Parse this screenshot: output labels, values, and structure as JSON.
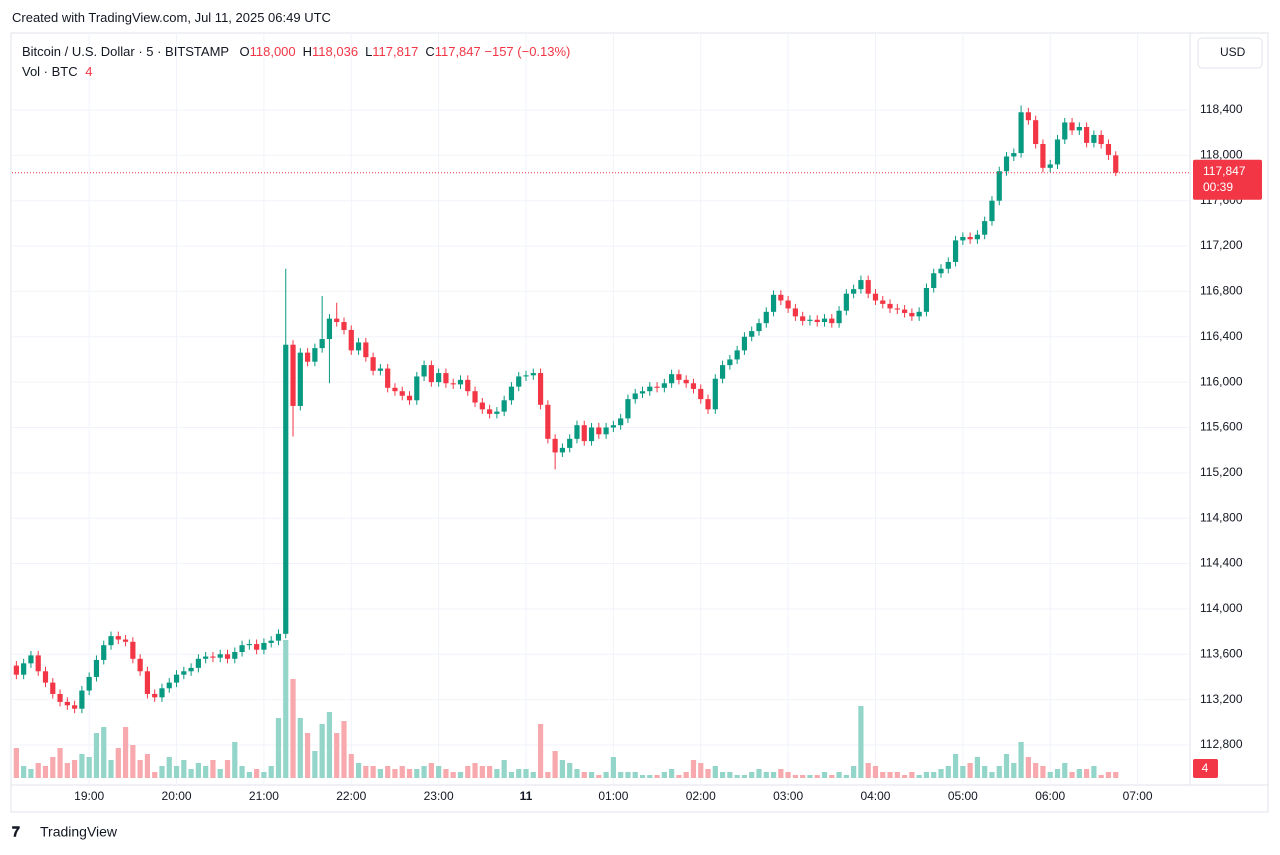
{
  "header": {
    "created": "Created with TradingView.com, Jul 11, 2025 06:49 UTC"
  },
  "footer": {
    "logo": "TradingView"
  },
  "chart_data": {
    "type": "candlestick",
    "title": "Bitcoin / U.S. Dollar · 5 · BITSTAMP",
    "ohlc_header": [
      {
        "key": "O",
        "value": "118,000"
      },
      {
        "key": "H",
        "value": "118,036"
      },
      {
        "key": "L",
        "value": "117,817"
      },
      {
        "key": "C",
        "value": "117,847"
      }
    ],
    "change_label": "−157 (−0.13%)",
    "volume_title": "Vol · BTC",
    "currency": "USD",
    "last_label": "117,847",
    "countdown": "00:39",
    "up_color": "#089981",
    "down_color": "#f23645",
    "up_volume_color": "#93d5c9",
    "down_volume_color": "#f7a9ae",
    "grid": true,
    "xlim": [
      1087,
      1896
    ],
    "xticks": [
      {
        "value": 1140,
        "label": "19:00"
      },
      {
        "value": 1200,
        "label": "20:00"
      },
      {
        "value": 1260,
        "label": "21:00"
      },
      {
        "value": 1320,
        "label": "22:00"
      },
      {
        "value": 1380,
        "label": "23:00"
      },
      {
        "value": 1440,
        "label": "11"
      },
      {
        "value": 1500,
        "label": "01:00"
      },
      {
        "value": 1560,
        "label": "02:00"
      },
      {
        "value": 1620,
        "label": "03:00"
      },
      {
        "value": 1680,
        "label": "04:00"
      },
      {
        "value": 1740,
        "label": "05:00"
      },
      {
        "value": 1800,
        "label": "06:00"
      },
      {
        "value": 1860,
        "label": "07:00"
      }
    ],
    "ylim": [
      112447,
      119079
    ],
    "yticks": [
      {
        "value": 112800,
        "label": "112,800"
      },
      {
        "value": 113200,
        "label": "113,200"
      },
      {
        "value": 113600,
        "label": "113,600"
      },
      {
        "value": 114000,
        "label": "114,000"
      },
      {
        "value": 114400,
        "label": "114,400"
      },
      {
        "value": 114800,
        "label": "114,800"
      },
      {
        "value": 115200,
        "label": "115,200"
      },
      {
        "value": 115600,
        "label": "115,600"
      },
      {
        "value": 116000,
        "label": "116,000"
      },
      {
        "value": 116400,
        "label": "116,400"
      },
      {
        "value": 116800,
        "label": "116,800"
      },
      {
        "value": 117200,
        "label": "117,200"
      },
      {
        "value": 117600,
        "label": "117,600"
      },
      {
        "value": 118000,
        "label": "118,000"
      },
      {
        "value": 118400,
        "label": "118,400"
      }
    ],
    "vlim": [
      0,
      100
    ],
    "x": [
      1090,
      1095,
      1100,
      1105,
      1110,
      1115,
      1120,
      1125,
      1130,
      1135,
      1140,
      1145,
      1150,
      1155,
      1160,
      1165,
      1170,
      1175,
      1180,
      1185,
      1190,
      1195,
      1200,
      1205,
      1210,
      1215,
      1220,
      1225,
      1230,
      1235,
      1240,
      1245,
      1250,
      1255,
      1260,
      1265,
      1270,
      1275,
      1280,
      1285,
      1290,
      1295,
      1300,
      1305,
      1310,
      1315,
      1320,
      1325,
      1330,
      1335,
      1340,
      1345,
      1350,
      1355,
      1360,
      1365,
      1370,
      1375,
      1380,
      1385,
      1390,
      1395,
      1400,
      1405,
      1410,
      1415,
      1420,
      1425,
      1430,
      1435,
      1440,
      1445,
      1450,
      1455,
      1460,
      1465,
      1470,
      1475,
      1480,
      1485,
      1490,
      1495,
      1500,
      1505,
      1510,
      1515,
      1520,
      1525,
      1530,
      1535,
      1540,
      1545,
      1550,
      1555,
      1560,
      1565,
      1570,
      1575,
      1580,
      1585,
      1590,
      1595,
      1600,
      1605,
      1610,
      1615,
      1620,
      1625,
      1630,
      1635,
      1640,
      1645,
      1650,
      1655,
      1660,
      1665,
      1670,
      1675,
      1680,
      1685,
      1690,
      1695,
      1700,
      1705,
      1710,
      1715,
      1720,
      1725,
      1730,
      1735,
      1740,
      1745,
      1750,
      1755,
      1760,
      1765,
      1770,
      1775,
      1780,
      1785,
      1790,
      1795,
      1800,
      1805,
      1810,
      1815,
      1820,
      1825,
      1830,
      1835,
      1840,
      1845
    ],
    "open": [
      113500,
      113420,
      113520,
      113590,
      113450,
      113350,
      113250,
      113180,
      113150,
      113120,
      113280,
      113400,
      113550,
      113680,
      113760,
      113730,
      113710,
      113560,
      113450,
      113250,
      113220,
      113300,
      113350,
      113420,
      113450,
      113480,
      113560,
      113580,
      113570,
      113600,
      113560,
      113620,
      113680,
      113690,
      113640,
      113700,
      113720,
      113780,
      116330,
      115790,
      116260,
      116180,
      116300,
      116380,
      116560,
      116530,
      116460,
      116280,
      116350,
      116220,
      116100,
      116120,
      115950,
      115920,
      115880,
      115840,
      116050,
      116150,
      116000,
      116080,
      115990,
      115980,
      116020,
      115920,
      115820,
      115760,
      115720,
      115740,
      115840,
      115960,
      116050,
      116060,
      116080,
      115800,
      115500,
      115380,
      115420,
      115500,
      115620,
      115480,
      115600,
      115540,
      115600,
      115620,
      115680,
      115850,
      115900,
      115920,
      115960,
      115950,
      115990,
      116070,
      116020,
      115990,
      115940,
      115850,
      115760,
      116030,
      116150,
      116200,
      116280,
      116400,
      116450,
      116520,
      116620,
      116770,
      116720,
      116650,
      116580,
      116540,
      116550,
      116530,
      116560,
      116520,
      116630,
      116780,
      116820,
      116900,
      116780,
      116720,
      116690,
      116650,
      116640,
      116610,
      116580,
      116620,
      116830,
      116960,
      117000,
      117060,
      117250,
      117280,
      117260,
      117300,
      117420,
      117600,
      117860,
      117990,
      118020,
      118380,
      118310,
      118100,
      117890,
      117920,
      118140,
      118290,
      118220,
      118250,
      118110,
      118180,
      118100,
      118000
    ],
    "high": [
      113540,
      113560,
      113630,
      113630,
      113490,
      113390,
      113290,
      113220,
      113190,
      113320,
      113440,
      113590,
      113720,
      113800,
      113800,
      113770,
      113750,
      113600,
      113490,
      113290,
      113340,
      113390,
      113460,
      113490,
      113520,
      113600,
      113620,
      113620,
      113640,
      113640,
      113660,
      113720,
      113730,
      113730,
      113740,
      113760,
      113820,
      117000,
      116370,
      116300,
      116300,
      116340,
      116760,
      116600,
      116700,
      116570,
      116500,
      116390,
      116390,
      116260,
      116160,
      116160,
      115990,
      115960,
      115920,
      116090,
      116190,
      116190,
      116120,
      116120,
      116030,
      116060,
      116060,
      115960,
      115860,
      115800,
      115780,
      115880,
      116000,
      116090,
      116100,
      116120,
      116120,
      115840,
      115540,
      115460,
      115540,
      115660,
      115660,
      115640,
      115640,
      115640,
      115660,
      115720,
      115890,
      115940,
      115960,
      116000,
      116000,
      116030,
      116110,
      116110,
      116060,
      116030,
      115980,
      115890,
      116070,
      116190,
      116240,
      116320,
      116440,
      116490,
      116560,
      116660,
      116810,
      116810,
      116760,
      116690,
      116620,
      116590,
      116590,
      116600,
      116600,
      116670,
      116820,
      116860,
      116940,
      116940,
      116820,
      116760,
      116730,
      116690,
      116680,
      116650,
      116660,
      116870,
      117000,
      117040,
      117100,
      117290,
      117320,
      117320,
      117340,
      117460,
      117640,
      117900,
      118030,
      118060,
      118440,
      118420,
      118350,
      118140,
      117960,
      118180,
      118330,
      118330,
      118290,
      118290,
      118220,
      118220,
      118140,
      118036
    ],
    "low": [
      113380,
      113380,
      113480,
      113410,
      113310,
      113210,
      113140,
      113110,
      113080,
      113080,
      113240,
      113360,
      113510,
      113640,
      113690,
      113670,
      113520,
      113410,
      113210,
      113180,
      113180,
      113260,
      113310,
      113380,
      113410,
      113440,
      113520,
      113530,
      113530,
      113520,
      113520,
      113580,
      113640,
      113600,
      113600,
      113660,
      113680,
      113740,
      115520,
      115750,
      116140,
      116140,
      116260,
      115990,
      116490,
      116420,
      116240,
      116240,
      116180,
      116060,
      116060,
      115910,
      115880,
      115840,
      115800,
      115800,
      116010,
      115960,
      115960,
      115950,
      115940,
      115940,
      115880,
      115780,
      115720,
      115680,
      115680,
      115700,
      115800,
      115920,
      116010,
      116020,
      115760,
      115460,
      115230,
      115340,
      115380,
      115460,
      115440,
      115440,
      115500,
      115500,
      115560,
      115580,
      115640,
      115810,
      115860,
      115880,
      115910,
      115910,
      115950,
      115980,
      115950,
      115900,
      115810,
      115720,
      115720,
      115990,
      116110,
      116160,
      116240,
      116360,
      116410,
      116480,
      116580,
      116680,
      116610,
      116540,
      116500,
      116500,
      116490,
      116490,
      116480,
      116480,
      116590,
      116740,
      116780,
      116740,
      116680,
      116650,
      116610,
      116600,
      116570,
      116540,
      116540,
      116580,
      116790,
      116920,
      116960,
      117020,
      117210,
      117220,
      117220,
      117260,
      117380,
      117560,
      117820,
      117950,
      117980,
      118270,
      118060,
      117850,
      117850,
      117880,
      118100,
      118180,
      118180,
      118070,
      118070,
      118060,
      117960,
      117817
    ],
    "close": [
      113420,
      113520,
      113590,
      113450,
      113350,
      113250,
      113180,
      113150,
      113120,
      113280,
      113400,
      113550,
      113680,
      113760,
      113730,
      113710,
      113560,
      113450,
      113250,
      113220,
      113300,
      113350,
      113420,
      113450,
      113480,
      113560,
      113580,
      113570,
      113600,
      113560,
      113620,
      113680,
      113690,
      113640,
      113700,
      113720,
      113780,
      116330,
      115790,
      116260,
      116180,
      116300,
      116380,
      116560,
      116530,
      116460,
      116280,
      116350,
      116220,
      116100,
      116120,
      115950,
      115920,
      115880,
      115840,
      116050,
      116150,
      116000,
      116080,
      115990,
      115980,
      116020,
      115920,
      115820,
      115760,
      115720,
      115740,
      115840,
      115960,
      116050,
      116060,
      116080,
      115800,
      115500,
      115380,
      115420,
      115500,
      115620,
      115480,
      115600,
      115540,
      115600,
      115620,
      115680,
      115850,
      115900,
      115920,
      115960,
      115950,
      115990,
      116070,
      116020,
      115990,
      115940,
      115850,
      115760,
      116030,
      116150,
      116200,
      116280,
      116400,
      116450,
      116520,
      116620,
      116770,
      116720,
      116650,
      116580,
      116540,
      116550,
      116530,
      116560,
      116520,
      116630,
      116780,
      116820,
      116900,
      116780,
      116720,
      116690,
      116650,
      116640,
      116610,
      116580,
      116620,
      116830,
      116960,
      117000,
      117060,
      117250,
      117280,
      117260,
      117300,
      117420,
      117600,
      117860,
      117990,
      118020,
      118380,
      118310,
      118100,
      117890,
      117920,
      118140,
      118290,
      118220,
      118250,
      118110,
      118180,
      118100,
      118004,
      117847
    ],
    "volume": [
      20,
      8,
      6,
      10,
      8,
      14,
      20,
      10,
      12,
      16,
      14,
      30,
      34,
      12,
      20,
      34,
      22,
      12,
      16,
      4,
      8,
      14,
      8,
      12,
      6,
      10,
      8,
      12,
      6,
      12,
      24,
      8,
      4,
      6,
      4,
      8,
      40,
      92,
      66,
      40,
      30,
      18,
      36,
      44,
      30,
      38,
      16,
      10,
      8,
      8,
      6,
      8,
      6,
      8,
      6,
      6,
      8,
      10,
      8,
      6,
      4,
      4,
      8,
      10,
      8,
      8,
      6,
      12,
      4,
      6,
      6,
      4,
      36,
      4,
      18,
      12,
      10,
      6,
      4,
      4,
      2,
      4,
      14,
      4,
      4,
      4,
      2,
      2,
      2,
      4,
      6,
      2,
      4,
      12,
      10,
      6,
      8,
      4,
      4,
      2,
      2,
      4,
      6,
      4,
      4,
      6,
      4,
      2,
      2,
      2,
      2,
      4,
      2,
      4,
      2,
      8,
      48,
      10,
      8,
      4,
      4,
      4,
      2,
      4,
      2,
      4,
      4,
      6,
      8,
      16,
      8,
      10,
      14,
      8,
      4,
      8,
      16,
      10,
      24,
      14,
      10,
      8,
      4,
      6,
      10,
      4,
      6,
      6,
      8,
      2,
      4,
      4
    ]
  }
}
